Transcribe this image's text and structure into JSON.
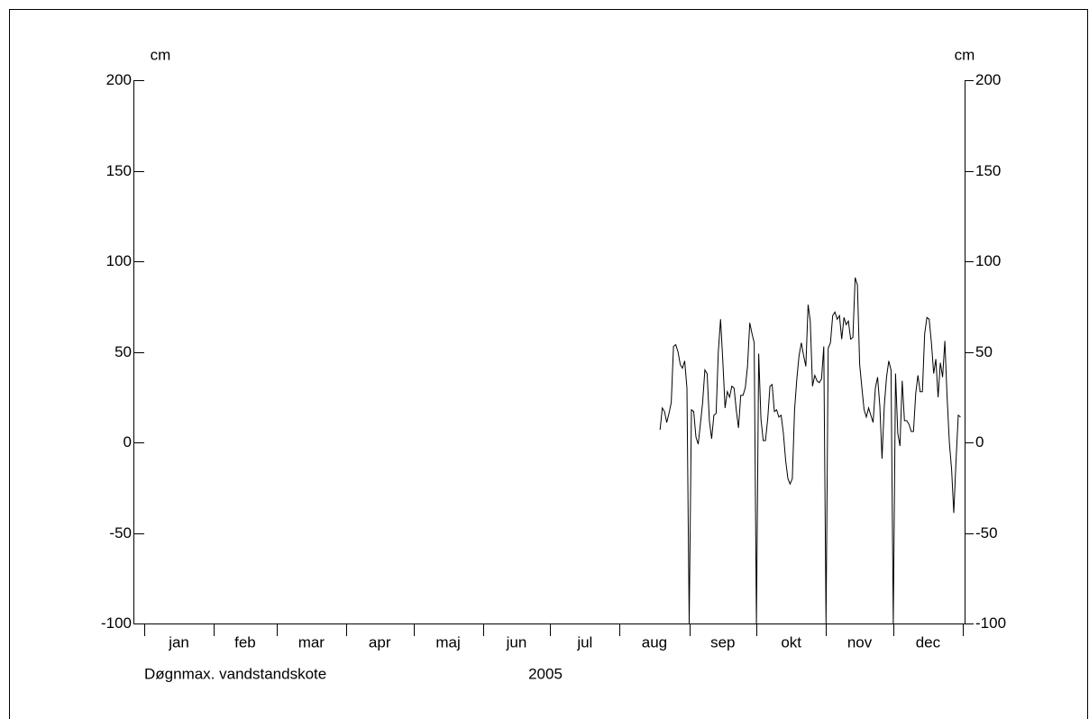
{
  "chart_data": {
    "type": "line",
    "title": "Døgnmax. vandstandskote",
    "subtitle": "2005",
    "y_label": "cm",
    "y2_label": "cm",
    "categories": [
      "jan",
      "feb",
      "mar",
      "apr",
      "maj",
      "jun",
      "jul",
      "aug",
      "sep",
      "okt",
      "nov",
      "dec"
    ],
    "xlim": [
      0,
      365
    ],
    "ylim": [
      -100,
      200
    ],
    "yticks": [
      -100,
      -50,
      0,
      50,
      100,
      150,
      200
    ],
    "y2lim": [
      -100,
      200
    ],
    "y2ticks": [
      -100,
      -50,
      0,
      50,
      100,
      150,
      200
    ],
    "series": [
      {
        "color": "#000000",
        "x": [
          230,
          231,
          232,
          233,
          234,
          235,
          236,
          237,
          238,
          239,
          240,
          241,
          242,
          243,
          244,
          245,
          246,
          247,
          248,
          249,
          250,
          251,
          252,
          253,
          254,
          255,
          256,
          257,
          258,
          259,
          260,
          261,
          262,
          263,
          264,
          265,
          266,
          267,
          268,
          269,
          270,
          271,
          272,
          273,
          274,
          275,
          276,
          277,
          278,
          279,
          280,
          281,
          282,
          283,
          284,
          285,
          286,
          287,
          288,
          289,
          290,
          291,
          292,
          293,
          294,
          295,
          296,
          297,
          298,
          299,
          300,
          301,
          302,
          303,
          304,
          305,
          306,
          307,
          308,
          309,
          310,
          311,
          312,
          313,
          314,
          315,
          316,
          317,
          318,
          319,
          320,
          321,
          322,
          323,
          324,
          325,
          326,
          327,
          328,
          329,
          330,
          331,
          332,
          333,
          334,
          335,
          336,
          337,
          338,
          339,
          340,
          341,
          342,
          343,
          344,
          345,
          346,
          347,
          348,
          349,
          350,
          351,
          352,
          353,
          354,
          355,
          356,
          357,
          358,
          359,
          360,
          361,
          362,
          363,
          364
        ],
        "values": [
          7,
          19,
          17,
          11,
          16,
          22,
          53,
          54,
          50,
          43,
          41,
          45,
          30,
          -100,
          18,
          17,
          3,
          -1,
          10,
          22,
          40,
          38,
          12,
          2,
          15,
          16,
          50,
          68,
          45,
          19,
          28,
          25,
          31,
          30,
          18,
          8,
          26,
          26,
          30,
          42,
          66,
          60,
          55,
          -100,
          49,
          13,
          1,
          1,
          13,
          31,
          32,
          17,
          18,
          14,
          15,
          5,
          -10,
          -20,
          -23,
          -20,
          18,
          35,
          48,
          55,
          48,
          42,
          76,
          67,
          31,
          37,
          34,
          33,
          35,
          53,
          -100,
          52,
          55,
          70,
          72,
          68,
          70,
          57,
          69,
          65,
          67,
          57,
          58,
          91,
          87,
          43,
          30,
          18,
          14,
          19,
          15,
          11,
          30,
          36,
          20,
          -9,
          20,
          36,
          45,
          40,
          -100,
          38,
          5,
          -2,
          34,
          12,
          12,
          10,
          6,
          6,
          27,
          37,
          28,
          28,
          60,
          69,
          68,
          55,
          38,
          46,
          25,
          44,
          36,
          56,
          25,
          0,
          -15,
          -39,
          -10,
          15,
          14
        ]
      }
    ]
  }
}
